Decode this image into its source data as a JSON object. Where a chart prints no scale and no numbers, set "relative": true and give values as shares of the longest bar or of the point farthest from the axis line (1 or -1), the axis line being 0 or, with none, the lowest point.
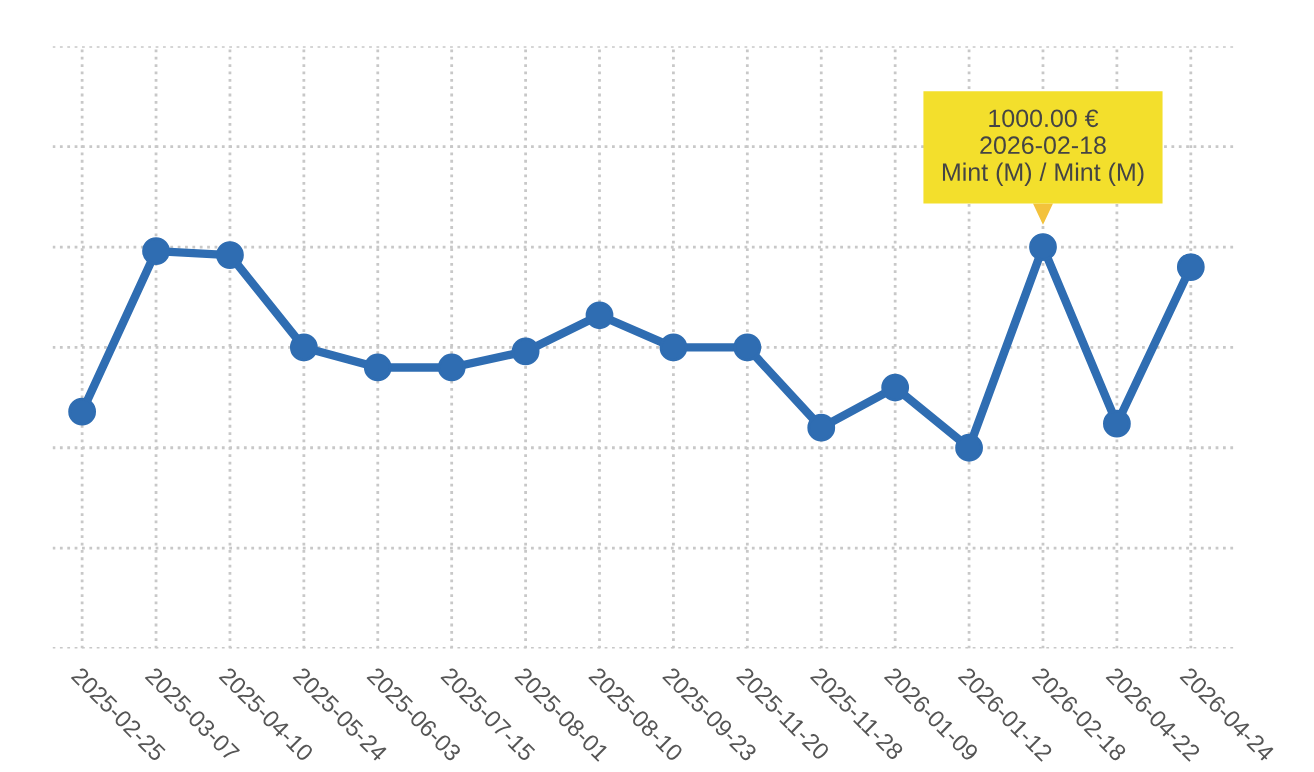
{
  "chart_data": {
    "type": "line",
    "relative": true,
    "grid": true,
    "marker": "circle",
    "line_style": "solid",
    "categories": [
      "2025-02-25",
      "2025-03-07",
      "2025-04-10",
      "2025-05-24",
      "2025-06-03",
      "2025-07-15",
      "2025-08-01",
      "2025-08-10",
      "2025-09-23",
      "2025-11-20",
      "2025-11-28",
      "2026-01-09",
      "2026-01-12",
      "2026-02-18",
      "2026-04-22",
      "2026-04-24"
    ],
    "series": [
      {
        "color": "#2f6db2",
        "values": [
          0.59,
          0.99,
          0.98,
          0.75,
          0.7,
          0.7,
          0.74,
          0.83,
          0.75,
          0.75,
          0.55,
          0.65,
          0.5,
          1,
          0.56,
          0.95
        ]
      }
    ],
    "annotations": [
      {
        "text": "1000.00 €\n2026-02-18\nMint (M) / Mint (M)",
        "x": "2026-02-18",
        "y": 1
      }
    ]
  }
}
